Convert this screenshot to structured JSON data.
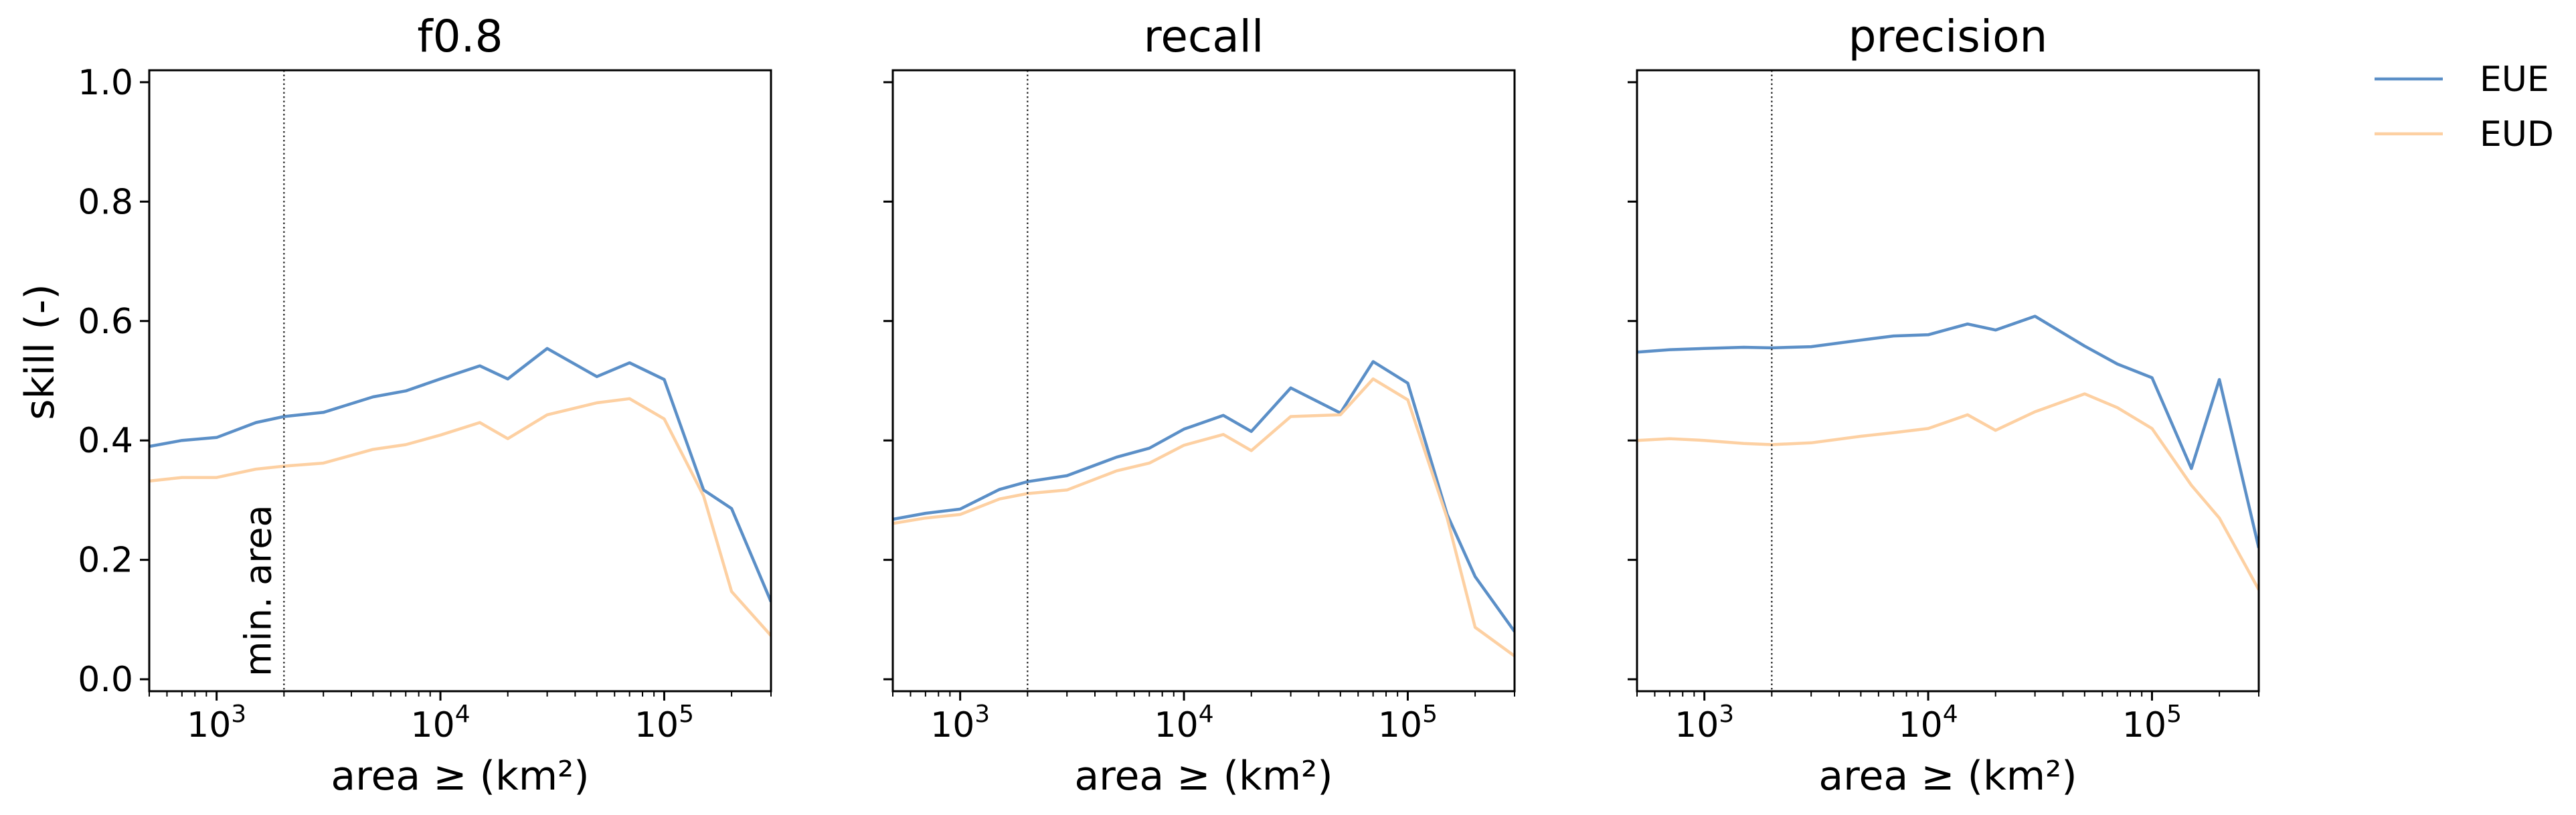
{
  "chart_data": {
    "type": "line",
    "x_scale": "log",
    "xlim": [
      500,
      300000
    ],
    "ylim": [
      -0.02,
      1.02
    ],
    "ylabel": "skill (-)",
    "yticks": [
      0.0,
      0.2,
      0.4,
      0.6,
      0.8,
      1.0
    ],
    "ytick_labels": [
      "0.0",
      "0.2",
      "0.4",
      "0.6",
      "0.8",
      "1.0"
    ],
    "xticks": [
      1000,
      10000,
      100000
    ],
    "xtick_labels": [
      {
        "base": "10",
        "exp": "3"
      },
      {
        "base": "10",
        "exp": "4"
      },
      {
        "base": "10",
        "exp": "5"
      }
    ],
    "grid": false,
    "legend_position": "right, outside top",
    "series_styles": [
      {
        "name": "EUE",
        "color": "#5b8fc7"
      },
      {
        "name": "EUD",
        "color": "#fdd0a2"
      }
    ],
    "vline": {
      "x": 2000,
      "style": "dotted",
      "label": "min. area"
    },
    "panels": [
      {
        "title": "f0.8",
        "xlabel": "area ≥ (km²)",
        "series": [
          {
            "name": "EUE",
            "x": [
              500,
              700,
              1000,
              1500,
              2000,
              3000,
              5000,
              7000,
              10000,
              15000,
              20000,
              30000,
              50000,
              70000,
              100000,
              150000,
              200000,
              300000
            ],
            "values": [
              0.39,
              0.4,
              0.405,
              0.43,
              0.44,
              0.447,
              0.473,
              0.483,
              0.503,
              0.525,
              0.503,
              0.554,
              0.507,
              0.53,
              0.502,
              0.317,
              0.286,
              0.13
            ]
          },
          {
            "name": "EUD",
            "x": [
              500,
              700,
              1000,
              1500,
              2000,
              3000,
              5000,
              7000,
              10000,
              15000,
              20000,
              30000,
              50000,
              70000,
              100000,
              150000,
              200000,
              300000
            ],
            "values": [
              0.332,
              0.338,
              0.338,
              0.352,
              0.357,
              0.362,
              0.385,
              0.393,
              0.409,
              0.43,
              0.403,
              0.443,
              0.463,
              0.47,
              0.436,
              0.307,
              0.147,
              0.073
            ]
          }
        ]
      },
      {
        "title": "recall",
        "xlabel": "area ≥ (km²)",
        "series": [
          {
            "name": "EUE",
            "x": [
              500,
              700,
              1000,
              1500,
              2000,
              3000,
              5000,
              7000,
              10000,
              15000,
              20000,
              30000,
              50000,
              70000,
              100000,
              150000,
              200000,
              300000
            ],
            "values": [
              0.268,
              0.278,
              0.285,
              0.318,
              0.331,
              0.341,
              0.372,
              0.387,
              0.419,
              0.442,
              0.415,
              0.488,
              0.446,
              0.532,
              0.496,
              0.276,
              0.172,
              0.08
            ]
          },
          {
            "name": "EUD",
            "x": [
              500,
              700,
              1000,
              1500,
              2000,
              3000,
              5000,
              7000,
              10000,
              15000,
              20000,
              30000,
              50000,
              70000,
              100000,
              150000,
              200000,
              300000
            ],
            "values": [
              0.261,
              0.27,
              0.276,
              0.302,
              0.311,
              0.317,
              0.349,
              0.362,
              0.392,
              0.41,
              0.383,
              0.44,
              0.443,
              0.503,
              0.468,
              0.27,
              0.087,
              0.039
            ]
          }
        ]
      },
      {
        "title": "precision",
        "xlabel": "area ≥ (km²)",
        "series": [
          {
            "name": "EUE",
            "x": [
              500,
              700,
              1000,
              1500,
              2000,
              3000,
              5000,
              7000,
              10000,
              15000,
              20000,
              30000,
              50000,
              70000,
              100000,
              150000,
              200000,
              300000
            ],
            "values": [
              0.548,
              0.552,
              0.554,
              0.556,
              0.555,
              0.557,
              0.568,
              0.575,
              0.577,
              0.595,
              0.585,
              0.608,
              0.558,
              0.528,
              0.505,
              0.353,
              0.502,
              0.22
            ]
          },
          {
            "name": "EUD",
            "x": [
              500,
              700,
              1000,
              1500,
              2000,
              3000,
              5000,
              7000,
              10000,
              15000,
              20000,
              30000,
              50000,
              70000,
              100000,
              150000,
              200000,
              300000
            ],
            "values": [
              0.4,
              0.403,
              0.4,
              0.395,
              0.393,
              0.396,
              0.407,
              0.413,
              0.42,
              0.443,
              0.417,
              0.448,
              0.478,
              0.455,
              0.42,
              0.325,
              0.27,
              0.15
            ]
          }
        ]
      }
    ]
  }
}
